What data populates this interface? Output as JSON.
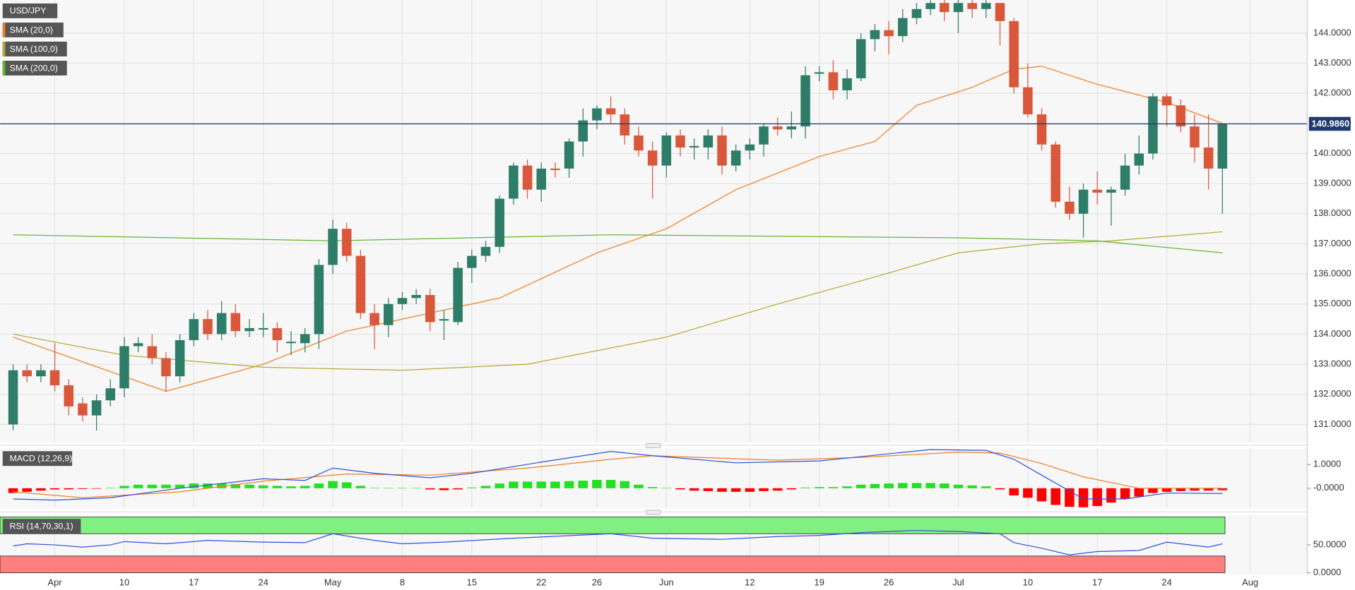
{
  "chart_data": [
    {
      "type": "candlestick",
      "title": "USD/JPY",
      "up_color": "#2e7d68",
      "down_color": "#d9573b",
      "xlim": [
        -0.94,
        93.1
      ],
      "xticks": [
        {
          "value": 3,
          "label": "Apr"
        },
        {
          "value": 8,
          "label": "10"
        },
        {
          "value": 13,
          "label": "17"
        },
        {
          "value": 18,
          "label": "24"
        },
        {
          "value": 23,
          "label": "May"
        },
        {
          "value": 28,
          "label": "8"
        },
        {
          "value": 33,
          "label": "15"
        },
        {
          "value": 38,
          "label": "22"
        },
        {
          "value": 42,
          "label": "26"
        },
        {
          "value": 47,
          "label": "Jun"
        },
        {
          "value": 53,
          "label": "12"
        },
        {
          "value": 58,
          "label": "19"
        },
        {
          "value": 63,
          "label": "26"
        },
        {
          "value": 68,
          "label": "Jul"
        },
        {
          "value": 73,
          "label": "10"
        },
        {
          "value": 78,
          "label": "17"
        },
        {
          "value": 83,
          "label": "24"
        },
        {
          "value": 89,
          "label": "Aug"
        }
      ],
      "ylim": [
        130.4,
        145.1
      ],
      "yticks": [
        {
          "value": 131,
          "label": "131.0000"
        },
        {
          "value": 132,
          "label": "132.0000"
        },
        {
          "value": 133,
          "label": "133.0000"
        },
        {
          "value": 134,
          "label": "134.0000"
        },
        {
          "value": 135,
          "label": "135.0000"
        },
        {
          "value": 136,
          "label": "136.0000"
        },
        {
          "value": 137,
          "label": "137.0000"
        },
        {
          "value": 138,
          "label": "138.0000"
        },
        {
          "value": 139,
          "label": "139.0000"
        },
        {
          "value": 140,
          "label": "140.0000"
        },
        {
          "value": 141,
          "label": "141.0000"
        },
        {
          "value": 142,
          "label": "142.0000"
        },
        {
          "value": 143,
          "label": "143.0000"
        },
        {
          "value": 144,
          "label": "144.0000"
        }
      ],
      "grid": true,
      "last_price": {
        "value": 140.986,
        "label": "140.9860",
        "color": "#1f3a6e"
      },
      "x": [
        0,
        1,
        2,
        3,
        4,
        5,
        6,
        7,
        8,
        9,
        10,
        11,
        12,
        13,
        14,
        15,
        16,
        17,
        18,
        19,
        20,
        21,
        22,
        23,
        24,
        25,
        26,
        27,
        28,
        29,
        30,
        31,
        32,
        33,
        34,
        35,
        36,
        37,
        38,
        39,
        40,
        41,
        42,
        43,
        44,
        45,
        46,
        47,
        48,
        49,
        50,
        51,
        52,
        53,
        54,
        55,
        56,
        57,
        58,
        59,
        60,
        61,
        62,
        63,
        64,
        65,
        66,
        67,
        68,
        69,
        70,
        71,
        72,
        73,
        74,
        75,
        76,
        77,
        78,
        79,
        80,
        81,
        82,
        83,
        84,
        85,
        86,
        87
      ],
      "open": [
        131.0,
        132.8,
        132.6,
        132.8,
        132.3,
        131.7,
        131.3,
        131.8,
        132.2,
        133.6,
        133.6,
        133.2,
        132.6,
        133.8,
        134.5,
        134.0,
        134.7,
        134.1,
        134.15,
        134.2,
        133.7,
        133.7,
        134.0,
        136.3,
        137.5,
        136.6,
        134.7,
        134.3,
        135.0,
        135.2,
        135.3,
        134.45,
        134.4,
        136.2,
        136.6,
        136.9,
        138.5,
        139.6,
        138.8,
        139.5,
        139.5,
        140.4,
        141.1,
        141.5,
        141.3,
        140.6,
        140.1,
        139.6,
        140.6,
        140.2,
        140.2,
        140.6,
        139.6,
        140.1,
        140.3,
        140.9,
        140.8,
        140.9,
        142.65,
        142.7,
        142.1,
        142.5,
        143.8,
        144.1,
        143.9,
        144.5,
        144.8,
        145.0,
        144.7,
        145.0,
        144.8,
        145.0,
        144.4,
        142.2,
        141.3,
        140.3,
        138.4,
        138.0,
        138.8,
        138.7,
        138.8,
        139.6,
        140.0,
        141.9,
        141.6,
        140.9,
        140.2,
        139.5
      ],
      "high": [
        133.0,
        133.0,
        133.0,
        133.7,
        132.5,
        131.9,
        132.0,
        132.5,
        133.9,
        133.9,
        134.0,
        133.4,
        134.0,
        134.7,
        134.8,
        135.1,
        135.0,
        134.5,
        134.7,
        134.4,
        134.1,
        134.2,
        136.5,
        137.8,
        137.7,
        136.8,
        135.0,
        135.2,
        135.4,
        135.5,
        135.5,
        134.8,
        136.4,
        136.8,
        137.1,
        138.6,
        139.7,
        139.8,
        139.7,
        139.7,
        140.5,
        141.5,
        141.6,
        141.9,
        141.5,
        140.9,
        140.4,
        140.7,
        140.8,
        140.5,
        140.8,
        140.9,
        140.3,
        140.5,
        141.0,
        141.2,
        141.4,
        142.9,
        142.9,
        143.1,
        142.8,
        144.0,
        144.3,
        144.4,
        144.8,
        145.0,
        145.2,
        145.1,
        145.3,
        145.1,
        145.1,
        145.0,
        144.5,
        143.0,
        141.5,
        140.4,
        138.9,
        139.0,
        139.4,
        138.9,
        140.0,
        140.6,
        142.0,
        142.0,
        141.8,
        141.3,
        141.3,
        141.0
      ],
      "low": [
        130.8,
        132.4,
        132.4,
        132.1,
        131.3,
        131.1,
        130.8,
        131.6,
        131.9,
        133.4,
        133.0,
        132.1,
        132.4,
        133.6,
        133.8,
        133.8,
        133.9,
        133.9,
        133.9,
        133.4,
        133.3,
        133.4,
        133.5,
        136.0,
        136.4,
        134.5,
        133.5,
        133.9,
        134.8,
        135.0,
        134.1,
        133.8,
        134.3,
        135.7,
        136.4,
        136.7,
        138.3,
        138.5,
        138.4,
        139.2,
        139.2,
        139.9,
        140.8,
        141.0,
        140.3,
        139.9,
        138.5,
        139.2,
        139.9,
        139.8,
        139.8,
        139.3,
        139.4,
        139.8,
        139.9,
        140.6,
        140.5,
        140.5,
        142.4,
        141.8,
        141.8,
        142.4,
        143.4,
        143.3,
        143.7,
        144.3,
        144.6,
        144.4,
        144.0,
        144.5,
        144.5,
        143.6,
        142.0,
        141.2,
        140.1,
        138.2,
        137.8,
        137.2,
        138.3,
        137.6,
        138.6,
        139.3,
        139.8,
        140.9,
        140.7,
        139.7,
        138.8,
        138.0
      ],
      "close": [
        132.8,
        132.6,
        132.8,
        132.3,
        131.6,
        131.3,
        131.8,
        132.2,
        133.6,
        133.7,
        133.2,
        132.6,
        133.8,
        134.5,
        134.0,
        134.7,
        134.1,
        134.2,
        134.2,
        133.8,
        133.75,
        134.0,
        136.3,
        137.5,
        136.6,
        134.7,
        134.3,
        135.0,
        135.2,
        135.3,
        134.4,
        134.5,
        136.2,
        136.6,
        136.9,
        138.5,
        139.6,
        138.8,
        139.5,
        139.45,
        140.4,
        141.1,
        141.5,
        141.3,
        140.6,
        140.1,
        139.6,
        140.6,
        140.2,
        140.25,
        140.6,
        139.6,
        140.1,
        140.3,
        140.9,
        140.8,
        140.9,
        142.6,
        142.7,
        142.1,
        142.5,
        143.8,
        144.1,
        143.9,
        144.5,
        144.8,
        145.0,
        144.7,
        145.0,
        144.8,
        145.0,
        144.4,
        142.2,
        141.3,
        140.3,
        138.4,
        138.0,
        138.8,
        138.7,
        138.8,
        139.6,
        140.0,
        141.9,
        141.6,
        140.9,
        140.2,
        139.5,
        140.986
      ],
      "series": [
        {
          "name": "SMA (20,0)",
          "color": "#f07f20",
          "x": [
            0,
            11,
            18,
            24,
            30,
            35,
            42,
            47,
            52,
            58,
            62,
            65,
            69,
            72,
            74,
            78,
            83,
            87
          ],
          "values": [
            133.9,
            132.1,
            133.0,
            134.1,
            134.7,
            135.2,
            136.7,
            137.5,
            138.8,
            139.9,
            140.4,
            141.6,
            142.2,
            142.8,
            142.9,
            142.3,
            141.7,
            141.0
          ]
        },
        {
          "name": "SMA (100,0)",
          "color": "#b5a830",
          "x": [
            0,
            8,
            18,
            28,
            37,
            47,
            55,
            62,
            68,
            74,
            79,
            87
          ],
          "values": [
            134.0,
            133.3,
            132.9,
            132.8,
            133.0,
            133.9,
            135.0,
            135.9,
            136.7,
            137.0,
            137.1,
            137.4
          ]
        },
        {
          "name": "SMA (200,0)",
          "color": "#5fb832",
          "x": [
            0,
            23,
            43,
            68,
            78,
            87
          ],
          "values": [
            137.3,
            137.1,
            137.3,
            137.2,
            137.1,
            136.7
          ]
        }
      ]
    },
    {
      "type": "macd",
      "title": "MACD (12,26,9)",
      "xlim": [
        -0.94,
        93.1
      ],
      "ylim": [
        -0.85,
        1.67
      ],
      "yticks": [
        {
          "value": 1,
          "label": "1.0000"
        },
        {
          "value": 0,
          "label": "-0.0000"
        }
      ],
      "histogram": {
        "up_color": "#22e022",
        "down_color": "#ff0000",
        "values": [
          -0.2,
          -0.15,
          -0.1,
          -0.05,
          -0.05,
          -0.03,
          -0.02,
          0.02,
          0.1,
          0.15,
          0.15,
          0.15,
          0.15,
          0.2,
          0.2,
          0.2,
          0.18,
          0.15,
          0.12,
          0.1,
          0.08,
          0.1,
          0.2,
          0.3,
          0.25,
          0.1,
          0.02,
          0.01,
          0.01,
          0.01,
          -0.05,
          -0.08,
          -0.05,
          0.03,
          0.1,
          0.2,
          0.28,
          0.28,
          0.28,
          0.28,
          0.3,
          0.32,
          0.35,
          0.35,
          0.3,
          0.15,
          0.05,
          0.02,
          -0.05,
          -0.1,
          -0.12,
          -0.15,
          -0.15,
          -0.15,
          -0.12,
          -0.1,
          -0.05,
          0.03,
          0.05,
          0.05,
          0.08,
          0.15,
          0.18,
          0.2,
          0.22,
          0.22,
          0.22,
          0.2,
          0.15,
          0.12,
          0.08,
          -0.05,
          -0.3,
          -0.4,
          -0.55,
          -0.7,
          -0.78,
          -0.8,
          -0.75,
          -0.6,
          -0.45,
          -0.35,
          -0.2,
          -0.15,
          -0.12,
          -0.1,
          -0.1,
          -0.08
        ]
      },
      "macd": {
        "color": "#2f4fd8",
        "x": [
          0,
          3,
          7,
          12,
          18,
          21,
          23,
          26,
          30,
          33,
          38,
          43,
          46,
          52,
          58,
          61,
          66,
          70,
          72,
          74,
          77,
          80,
          83,
          87
        ],
        "values": [
          -0.45,
          -0.5,
          -0.4,
          0,
          0.4,
          0.33,
          0.85,
          0.63,
          0.44,
          0.63,
          1.1,
          1.55,
          1.37,
          1.07,
          1.15,
          1.33,
          1.63,
          1.59,
          1.22,
          0.55,
          -0.45,
          -0.45,
          -0.2,
          -0.22
        ]
      },
      "signal": {
        "color": "#f07f20",
        "x": [
          0,
          5,
          12,
          18,
          24,
          30,
          37,
          43,
          46,
          55,
          61,
          68,
          71,
          74,
          77,
          81,
          87
        ],
        "values": [
          -0.15,
          -0.4,
          -0.15,
          0.3,
          0.6,
          0.55,
          0.85,
          1.22,
          1.37,
          1.18,
          1.3,
          1.52,
          1.48,
          1.04,
          0.48,
          0,
          0
        ]
      }
    },
    {
      "type": "rsi",
      "title": "RSI (14,70,30,1)",
      "xlim": [
        -0.94,
        93.1
      ],
      "ylim": [
        -3,
        103
      ],
      "yticks": [
        {
          "value": 50,
          "label": "50.0000"
        },
        {
          "value": 0,
          "label": "0.0000"
        }
      ],
      "overbought": 70,
      "oversold": 30,
      "overbought_color": "#80f080",
      "oversold_color": "#ff7f7f",
      "line": {
        "color": "#3050e0",
        "x": [
          0,
          1,
          3,
          5,
          7,
          8,
          11,
          14,
          18,
          21,
          23,
          26,
          28,
          31,
          36,
          43,
          46,
          51,
          55,
          58,
          61,
          65,
          68,
          71,
          72,
          74,
          76,
          78,
          81,
          83,
          86,
          87
        ],
        "values": [
          48,
          52,
          50,
          46,
          50,
          56,
          52,
          58,
          55,
          54,
          70,
          58,
          52,
          55,
          62,
          70,
          62,
          60,
          65,
          67,
          72,
          76,
          74,
          70,
          54,
          44,
          32,
          38,
          40,
          55,
          46,
          52
        ]
      }
    }
  ]
}
